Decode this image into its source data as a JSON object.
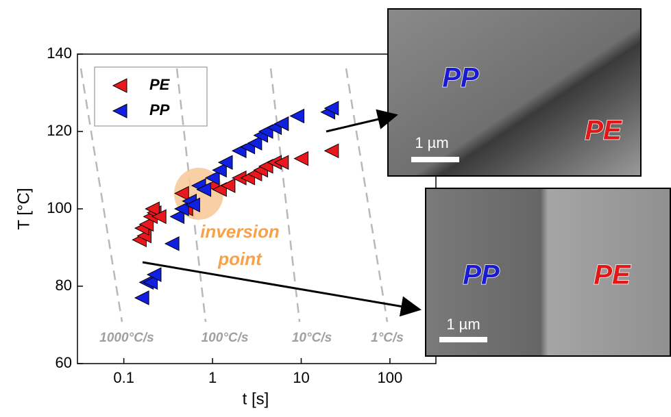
{
  "chart_data": {
    "type": "scatter",
    "xlabel": "t   [s]",
    "ylabel": "T   [°C]",
    "xlim": [
      0.03,
      330
    ],
    "ylim": [
      60,
      140
    ],
    "xscale": "log",
    "xticks": [
      0.1,
      1,
      10,
      100
    ],
    "yticks": [
      60,
      80,
      100,
      120,
      140
    ],
    "legend": "upper left",
    "series": [
      {
        "name": "PE",
        "color": "#e8181c",
        "x": [
          0.15,
          0.17,
          0.16,
          0.18,
          0.2,
          0.22,
          0.21,
          0.25,
          0.45,
          0.5,
          0.8,
          1.0,
          1.2,
          1.5,
          2,
          2.5,
          3,
          3.5,
          4,
          5,
          6,
          10,
          22
        ],
        "values": [
          92,
          93,
          95,
          96,
          98,
          99,
          100,
          98,
          104,
          100,
          105,
          106,
          105,
          106,
          108,
          108,
          109,
          110,
          111,
          112,
          112,
          113,
          115
        ]
      },
      {
        "name": "PP",
        "color": "#1020e0",
        "x": [
          0.16,
          0.18,
          0.2,
          0.22,
          0.35,
          0.4,
          0.45,
          0.55,
          0.6,
          0.7,
          0.8,
          1.0,
          1.2,
          1.4,
          2,
          2.5,
          3,
          3.5,
          4,
          5,
          6,
          9,
          20,
          22
        ],
        "values": [
          77,
          81,
          81,
          83,
          91,
          98,
          100,
          102,
          101,
          106,
          105,
          108,
          110,
          112,
          115,
          116,
          117,
          119,
          120,
          121,
          122,
          124,
          125,
          126
        ]
      }
    ],
    "annotations": [
      "1000°C/s",
      "100°C/s",
      "10°C/s",
      "1°C/s",
      "inversion",
      "point"
    ]
  },
  "insets": [
    {
      "labels": [
        "PP",
        "PE"
      ],
      "scale_bar": "1 µm"
    },
    {
      "labels": [
        "PP",
        "PE"
      ],
      "scale_bar": "1 µm"
    }
  ]
}
